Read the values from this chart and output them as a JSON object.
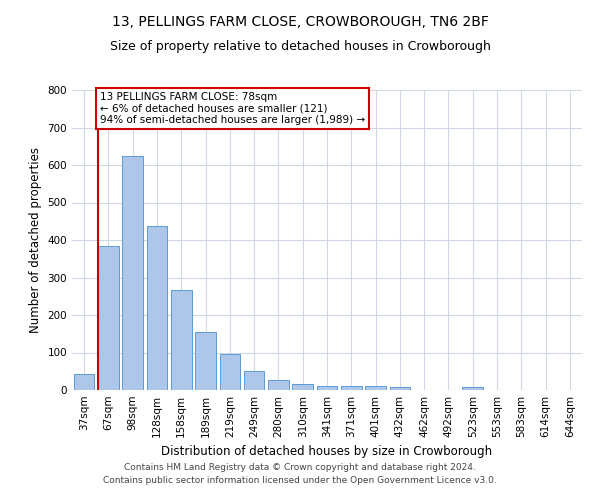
{
  "title_line1": "13, PELLINGS FARM CLOSE, CROWBOROUGH, TN6 2BF",
  "title_line2": "Size of property relative to detached houses in Crowborough",
  "xlabel": "Distribution of detached houses by size in Crowborough",
  "ylabel": "Number of detached properties",
  "footer_line1": "Contains HM Land Registry data © Crown copyright and database right 2024.",
  "footer_line2": "Contains public sector information licensed under the Open Government Licence v3.0.",
  "categories": [
    "37sqm",
    "67sqm",
    "98sqm",
    "128sqm",
    "158sqm",
    "189sqm",
    "219sqm",
    "249sqm",
    "280sqm",
    "310sqm",
    "341sqm",
    "371sqm",
    "401sqm",
    "432sqm",
    "462sqm",
    "492sqm",
    "523sqm",
    "553sqm",
    "583sqm",
    "614sqm",
    "644sqm"
  ],
  "values": [
    43,
    383,
    625,
    437,
    268,
    155,
    95,
    52,
    27,
    16,
    11,
    11,
    10,
    8,
    0,
    0,
    7,
    0,
    0,
    0,
    0
  ],
  "bar_color": "#aec6e8",
  "bar_edge_color": "#5b9bd5",
  "grid_color": "#d0d8e8",
  "annotation_text": "13 PELLINGS FARM CLOSE: 78sqm\n← 6% of detached houses are smaller (121)\n94% of semi-detached houses are larger (1,989) →",
  "annotation_box_color": "#ffffff",
  "annotation_box_edge_color": "#cc0000",
  "vline_color": "#cc0000",
  "ylim": [
    0,
    800
  ],
  "yticks": [
    0,
    100,
    200,
    300,
    400,
    500,
    600,
    700,
    800
  ],
  "background_color": "#ffffff",
  "title_fontsize": 10,
  "subtitle_fontsize": 9,
  "tick_fontsize": 7.5,
  "label_fontsize": 8.5,
  "annotation_fontsize": 7.5,
  "footer_fontsize": 6.5
}
